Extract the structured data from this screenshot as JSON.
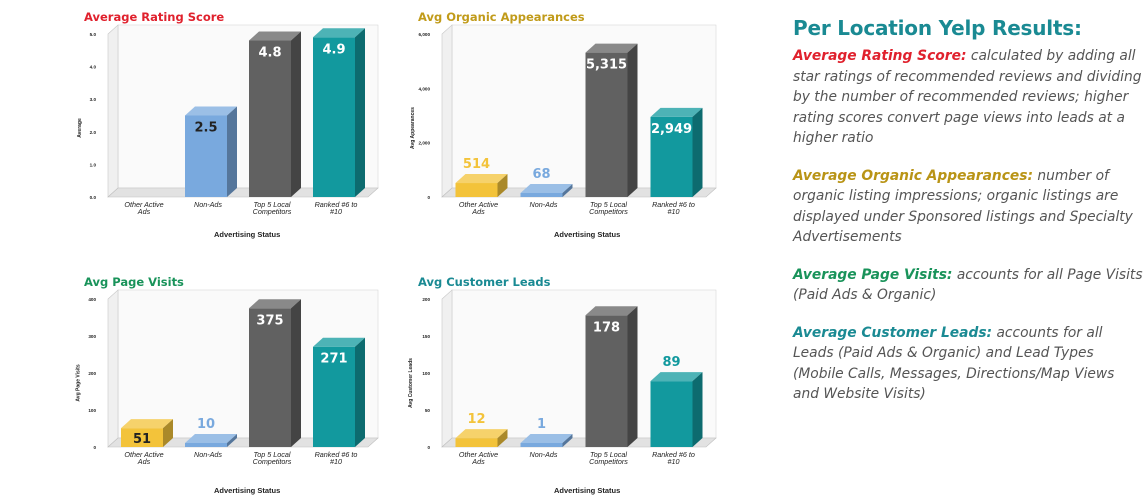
{
  "chart_data": [
    {
      "type": "bar",
      "title": "Average Rating Score",
      "title_color": "#e0212d",
      "ylabel": "Average",
      "xlabel": "Advertising Status",
      "categories": [
        "Other Active Ads",
        "Non-Ads",
        "Top 5 Local Competitors",
        "Ranked #6 to #10"
      ],
      "values": [
        null,
        2.5,
        4.8,
        4.9
      ],
      "value_labels": [
        "",
        "2.5",
        "4.8",
        "4.9"
      ],
      "ylim": [
        0,
        5
      ],
      "yticks": [
        "0.0",
        "1.0",
        "2.0",
        "3.0",
        "4.0",
        "5.0"
      ],
      "colors": [
        "#f3c33a",
        "#79a9de",
        "#616161",
        "#12999e"
      ]
    },
    {
      "type": "bar",
      "title": "Avg Organic Appearances",
      "title_color": "#c19b1a",
      "ylabel": "Avg Appearances",
      "xlabel": "Advertising Status",
      "categories": [
        "Other Active Ads",
        "Non-Ads",
        "Top 5 Local Competitors",
        "Ranked #6 to #10"
      ],
      "values": [
        514,
        68,
        5315,
        2949
      ],
      "value_labels": [
        "514",
        "68",
        "5,315",
        "2,949"
      ],
      "ylim": [
        0,
        6000
      ],
      "yticks": [
        "0",
        "2,000",
        "4,000",
        "6,000"
      ],
      "colors": [
        "#f3c33a",
        "#79a9de",
        "#616161",
        "#12999e"
      ]
    },
    {
      "type": "bar",
      "title": "Avg Page Visits",
      "title_color": "#19935a",
      "ylabel": "Avg Page Visits",
      "xlabel": "Advertising Status",
      "categories": [
        "Other Active Ads",
        "Non-Ads",
        "Top 5 Local Competitors",
        "Ranked #6 to #10"
      ],
      "values": [
        51,
        10,
        375,
        271
      ],
      "value_labels": [
        "51",
        "10",
        "375",
        "271"
      ],
      "ylim": [
        0,
        400
      ],
      "yticks": [
        "0",
        "100",
        "200",
        "300",
        "400"
      ],
      "colors": [
        "#f3c33a",
        "#79a9de",
        "#616161",
        "#12999e"
      ]
    },
    {
      "type": "bar",
      "title": "Avg Customer Leads",
      "title_color": "#1a8a93",
      "ylabel": "Avg Customer Leads",
      "xlabel": "Advertising Status",
      "categories": [
        "Other Active Ads",
        "Non-Ads",
        "Top 5 Local Competitors",
        "Ranked #6 to #10"
      ],
      "values": [
        12,
        1,
        178,
        89
      ],
      "value_labels": [
        "12",
        "1",
        "178",
        "89"
      ],
      "ylim": [
        0,
        200
      ],
      "yticks": [
        "0",
        "50",
        "100",
        "150",
        "200"
      ],
      "colors": [
        "#f3c33a",
        "#79a9de",
        "#616161",
        "#12999e"
      ]
    }
  ],
  "panel": {
    "title": "Per Location Yelp Results:",
    "sections": [
      {
        "head": "Average Rating Score:",
        "body": " calculated by adding all star ratings of recommended reviews and dividing by the number of recommended reviews; higher rating scores convert page views into leads at a higher ratio"
      },
      {
        "head": "Average Organic Appearances:",
        "body": " number of organic listing impressions; organic listings are displayed under Sponsored listings and Specialty Advertisements"
      },
      {
        "head": "Average Page Visits:",
        "body": " accounts for all Page Visits (Paid Ads & Organic)"
      },
      {
        "head": "Average Customer Leads:",
        "body": " accounts for all Leads (Paid Ads & Organic) and Lead Types (Mobile Calls, Messages, Directions/Map Views and Website Visits)"
      }
    ]
  }
}
